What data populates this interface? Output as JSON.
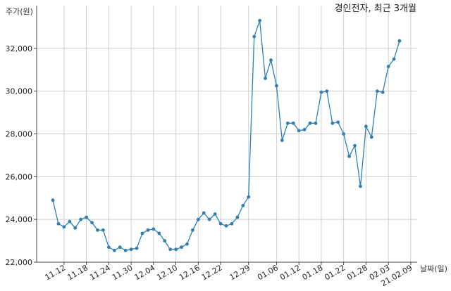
{
  "chart_data": {
    "type": "line",
    "title": "경인전자, 최근 3개월",
    "ylabel": "주가(원)",
    "xlabel": "날짜(일)",
    "ylim": [
      22000,
      34000
    ],
    "yticks": [
      22000,
      24000,
      26000,
      28000,
      30000,
      32000
    ],
    "ytick_labels": [
      "22,000",
      "24,000",
      "26,000",
      "28,000",
      "30,000",
      "32,000"
    ],
    "xtick_labels": [
      "11.12",
      "11.18",
      "11.24",
      "11.30",
      "12.04",
      "12.10",
      "12.16",
      "12.22",
      "12.29",
      "01.06",
      "01.12",
      "01.18",
      "01.22",
      "01.28",
      "02.03",
      "21.02.09"
    ],
    "xtick_indices": [
      2,
      6,
      10,
      14,
      18,
      22,
      26,
      30,
      35,
      40,
      44,
      48,
      52,
      56,
      60,
      64
    ],
    "grid": true,
    "line_color": "#2f7fb5",
    "values": [
      24900,
      23800,
      23650,
      23900,
      23600,
      24000,
      24100,
      23850,
      23500,
      23500,
      22700,
      22550,
      22700,
      22550,
      22600,
      22650,
      23350,
      23500,
      23550,
      23350,
      23000,
      22600,
      22600,
      22700,
      22850,
      23500,
      24000,
      24300,
      24000,
      24250,
      23800,
      23700,
      23800,
      24100,
      24650,
      25050,
      32550,
      33300,
      30600,
      31450,
      30250,
      27700,
      28500,
      28500,
      28150,
      28200,
      28500,
      28500,
      29950,
      30000,
      28500,
      28550,
      28000,
      26950,
      27450,
      25550,
      28350,
      27850,
      30000,
      29950,
      31150,
      31500,
      32350
    ]
  }
}
